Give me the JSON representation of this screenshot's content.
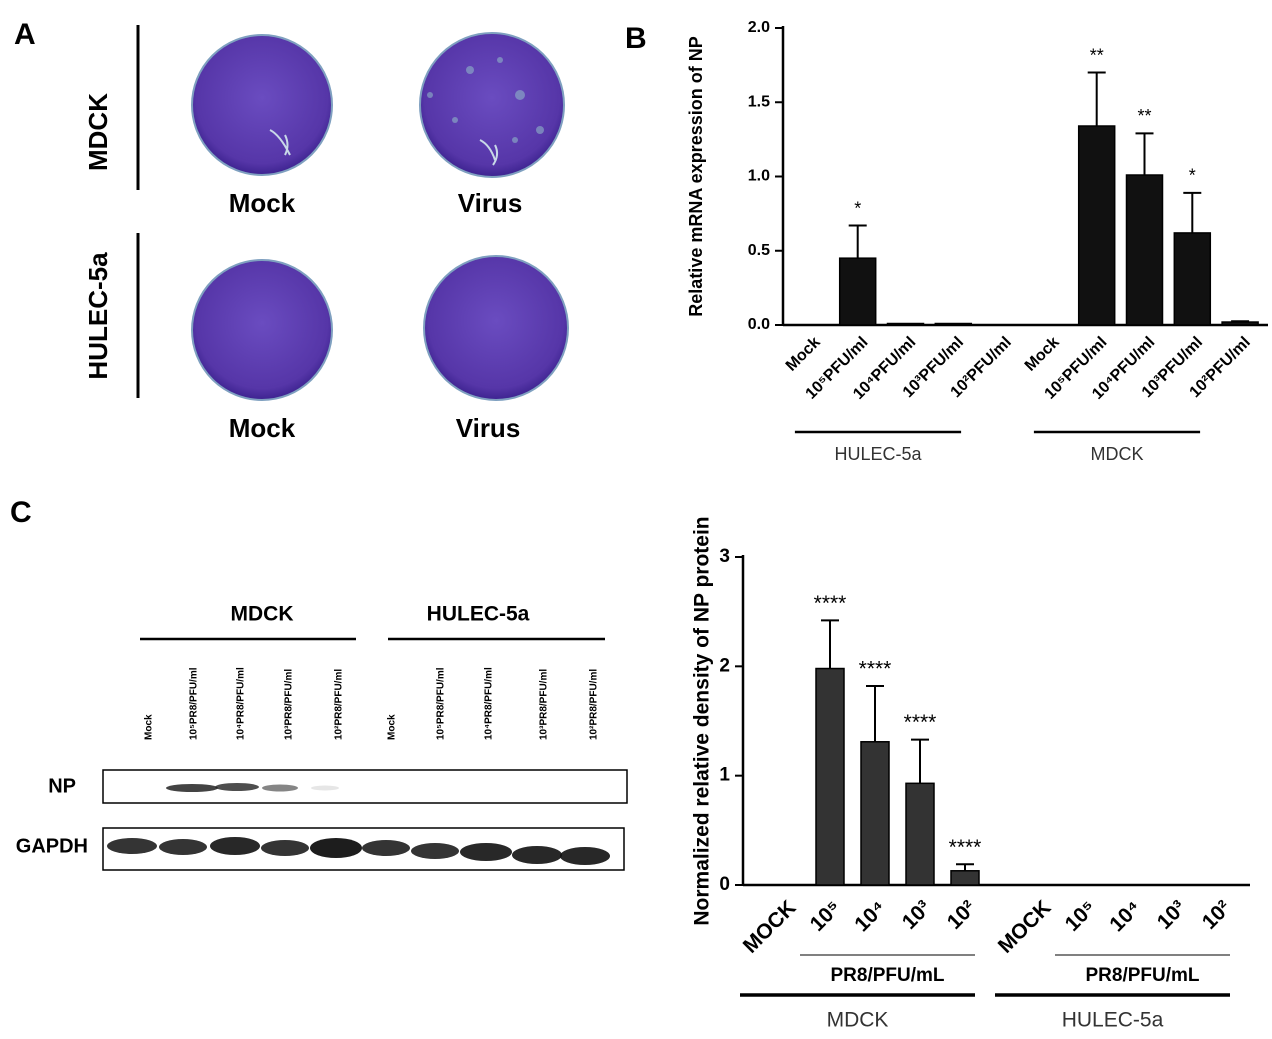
{
  "panels": {
    "a": "A",
    "b": "B",
    "c": "C"
  },
  "panel_a": {
    "rows": [
      "MDCK",
      "HULEC-5a"
    ],
    "columns": [
      [
        "Mock",
        "Virus"
      ],
      [
        "Mock",
        "Virus"
      ]
    ]
  },
  "panel_c_blot": {
    "groups": [
      "MDCK",
      "HULEC-5a"
    ],
    "lanes": [
      "Mock",
      "10⁵PR8/PFU/ml",
      "10⁴PR8/PFU/ml",
      "10³PR8/PFU/ml",
      "10²PR8/PFU/ml",
      "Mock",
      "10⁵PR8/PFU/ml",
      "10⁴PR8/PFU/ml",
      "10³PR8/PFU/ml",
      "10²PR8/PFU/ml"
    ],
    "rows": [
      "NP",
      "GAPDH"
    ]
  },
  "chart_data": [
    {
      "type": "bar",
      "ylabel": "Relative mRNA expression of NP",
      "categories": [
        "Mock",
        "10⁵PFU/ml",
        "10⁴PFU/ml",
        "10³PFU/ml",
        "10²PFU/ml",
        "Mock",
        "10⁵PFU/ml",
        "10⁴PFU/ml",
        "10³PFU/ml",
        "10²PFU/ml"
      ],
      "values": [
        0,
        0.45,
        0.01,
        0.01,
        0,
        0,
        1.34,
        1.01,
        0.62,
        0.02
      ],
      "errors": [
        null,
        0.22,
        null,
        null,
        null,
        null,
        0.36,
        0.28,
        0.27,
        0.005
      ],
      "annotations": [
        null,
        "*",
        null,
        null,
        null,
        null,
        "**",
        "**",
        "*",
        null
      ],
      "groups": [
        {
          "label": "HULEC-5a"
        },
        {
          "label": "MDCK"
        }
      ],
      "color": "#111111",
      "ylim": [
        0,
        2.0
      ],
      "yticks": [
        {
          "value": 0,
          "label": "0.0"
        },
        {
          "value": 0.5,
          "label": "0.5"
        },
        {
          "value": 1,
          "label": "1.0"
        },
        {
          "value": 1.5,
          "label": "1.5"
        },
        {
          "value": 2,
          "label": "2.0"
        }
      ]
    },
    {
      "type": "bar",
      "ylabel": "Normalized relative density of NP protein",
      "categories": [
        "MOCK",
        "10⁵",
        "10⁴",
        "10³",
        "10²",
        "MOCK",
        "10⁵",
        "10⁴",
        "10³",
        "10²"
      ],
      "values": [
        0,
        1.98,
        1.31,
        0.93,
        0.13,
        0,
        0,
        0,
        0,
        0
      ],
      "errors": [
        null,
        0.44,
        0.51,
        0.4,
        0.06,
        null,
        null,
        null,
        null,
        null
      ],
      "annotations": [
        null,
        "****",
        "****",
        "****",
        "****",
        null,
        null,
        null,
        null,
        null
      ],
      "groups": [
        {
          "label": "MDCK",
          "sublabel": "PR8/PFU/mL"
        },
        {
          "label": "HULEC-5a",
          "sublabel": "PR8/PFU/mL"
        }
      ],
      "color": "#333333",
      "ylim": [
        0,
        3
      ],
      "yticks": [
        0,
        1,
        2,
        3
      ]
    }
  ]
}
